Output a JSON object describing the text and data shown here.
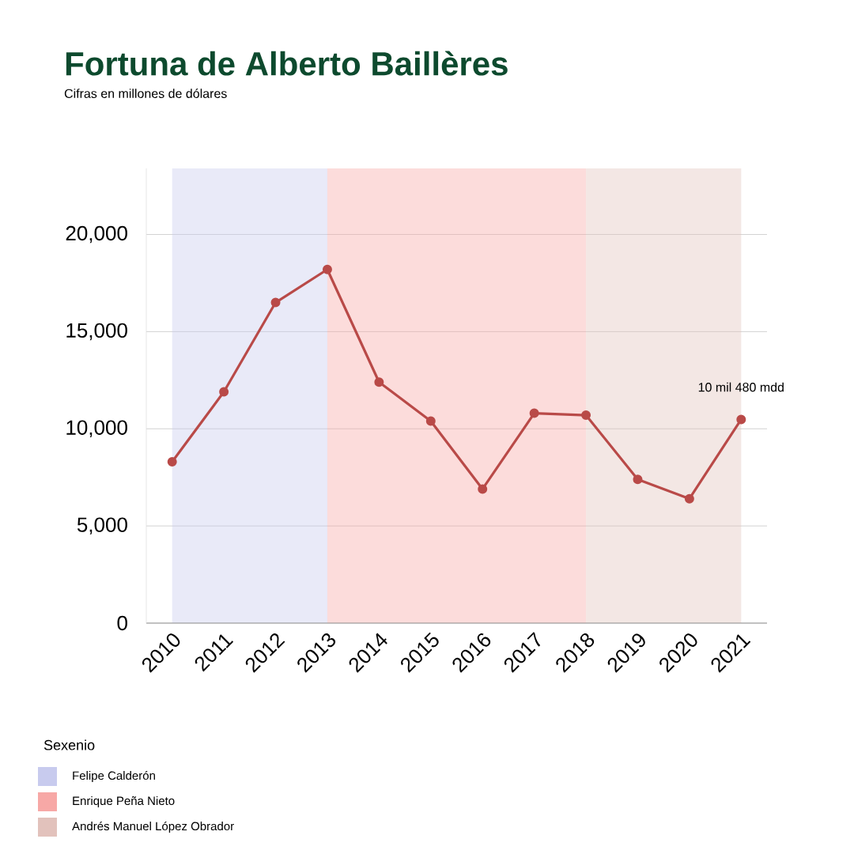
{
  "chart_data": {
    "type": "line",
    "title": "Fortuna de Alberto Baillères",
    "subtitle": "Cifras en millones de dólares",
    "categories": [
      "2010",
      "2011",
      "2012",
      "2013",
      "2014",
      "2015",
      "2016",
      "2017",
      "2018",
      "2019",
      "2020",
      "2021"
    ],
    "values": [
      8300,
      11900,
      16500,
      18200,
      12400,
      10400,
      6900,
      10800,
      10700,
      7400,
      6400,
      10480
    ],
    "color": "#b94a48",
    "marker": "circle",
    "grid": "y",
    "ylim": [
      0,
      23400
    ],
    "yticks": [
      0,
      {
        "value": 5000,
        "label": "5,000"
      },
      {
        "value": 10000,
        "label": "10,000"
      },
      {
        "value": 15000,
        "label": "15,000"
      },
      {
        "value": 20000,
        "label": "20,000"
      }
    ],
    "bands": [
      {
        "axis": "x",
        "from": "2010",
        "to": "2013",
        "label": "Felipe Calderón",
        "color": "#c8cbee"
      },
      {
        "axis": "x",
        "from": "2013",
        "to": "2018",
        "label": "Enrique Peña Nieto",
        "color": "#f7a8a6"
      },
      {
        "axis": "x",
        "from": "2018",
        "to": "2021",
        "label": "Andrés Manuel López Obrador",
        "color": "#e2c2bc"
      }
    ],
    "annotations": [
      {
        "text": "10 mil 480 mdd",
        "x": "2021",
        "y": 10480
      }
    ],
    "legend": "bottom left",
    "legend_title": "Sexenio"
  }
}
